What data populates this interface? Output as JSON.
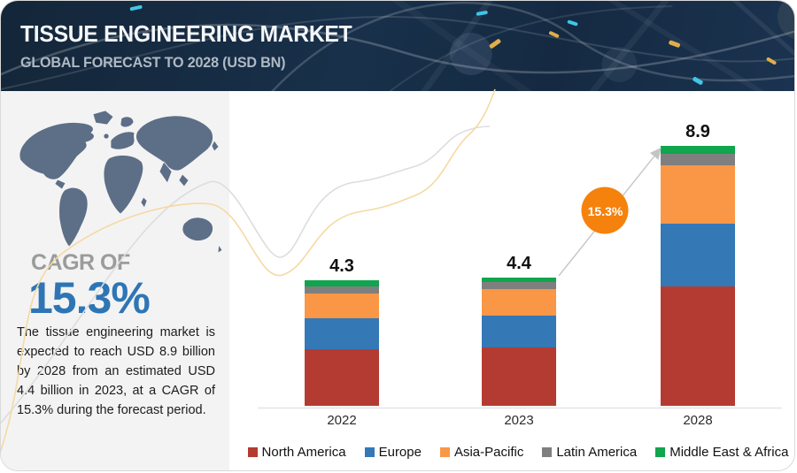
{
  "header": {
    "title": "TISSUE ENGINEERING MARKET",
    "subtitle": "GLOBAL FORECAST TO 2028 (USD BN)"
  },
  "sidebar": {
    "cagr_label": "CAGR OF",
    "cagr_value": "15.3%",
    "description": "The tissue engineering market is expected to reach USD 8.9 billion by 2028 from an estimated USD 4.4 billion in 2023, at a CAGR of 15.3% during the forecast period."
  },
  "chart_data": {
    "type": "bar",
    "stacked": true,
    "title": "Tissue Engineering Market",
    "subtitle": "Global Forecast to 2028 (USD BN)",
    "unit": "USD BN",
    "categories": [
      "2022",
      "2023",
      "2028"
    ],
    "totals": [
      4.3,
      4.4,
      8.9
    ],
    "series": [
      {
        "name": "North America",
        "color": "#b43b32",
        "values": [
          1.95,
          2.0,
          4.1
        ]
      },
      {
        "name": "Europe",
        "color": "#3478b6",
        "values": [
          1.05,
          1.1,
          2.15
        ]
      },
      {
        "name": "Asia-Pacific",
        "color": "#f99746",
        "values": [
          0.85,
          0.9,
          2.0
        ]
      },
      {
        "name": "Latin America",
        "color": "#7f7f7f",
        "values": [
          0.25,
          0.25,
          0.4
        ]
      },
      {
        "name": "Middle East & Africa",
        "color": "#10a54e",
        "values": [
          0.2,
          0.15,
          0.25
        ]
      }
    ],
    "cagr_annotation": "15.3%",
    "legend_position": "bottom",
    "gridlines": false,
    "ylim": [
      0,
      9.5
    ]
  },
  "colors": {
    "header_bg": "#18304a",
    "sidebar_bg": "#f3f3f3",
    "cagr_value_blue": "#2e75b6",
    "cagr_badge_orange": "#f5820d",
    "map_fill": "#5d6e87",
    "axis_line": "#dcdcdc",
    "trend_line": "#c4c4c4",
    "swoosh_gray": "#dddddd",
    "swoosh_yellow": "#f5d9a4"
  }
}
